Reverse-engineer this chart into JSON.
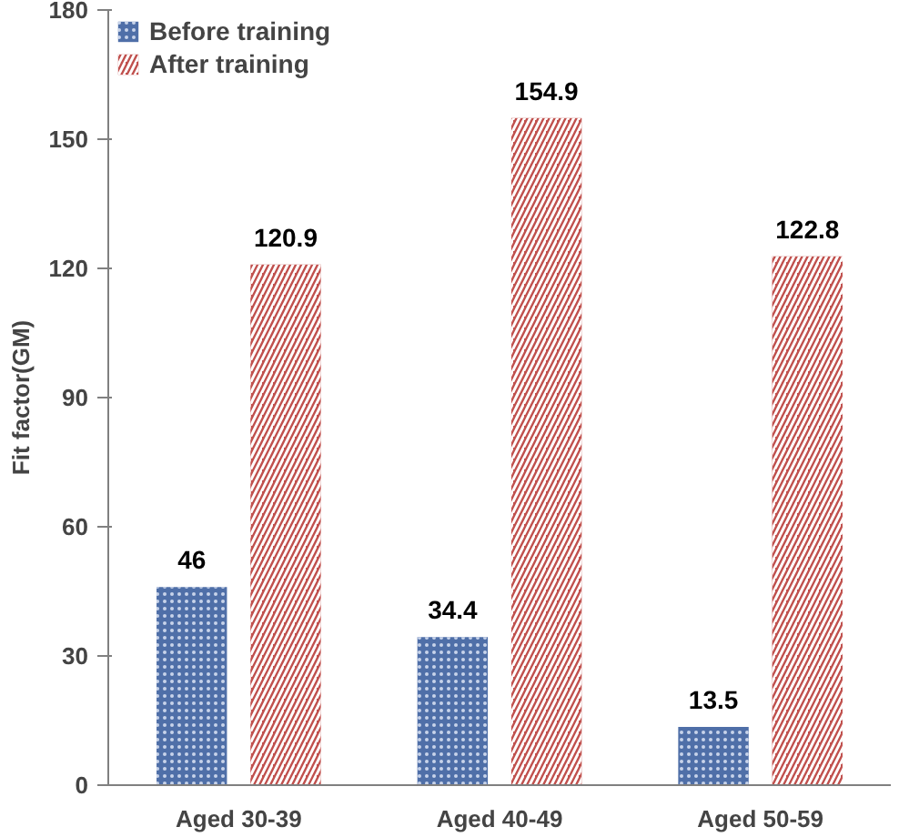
{
  "chart_data": {
    "type": "bar",
    "ylabel": "Fit factor(GM)",
    "categories": [
      "Aged 30-39",
      "Aged 40-49",
      "Aged 50-59"
    ],
    "series": [
      {
        "name": "Before training",
        "color": "#4f6fa8",
        "values": [
          46,
          34.4,
          13.5
        ]
      },
      {
        "name": "After training",
        "color": "#c0504d",
        "values": [
          120.9,
          154.9,
          122.8
        ]
      }
    ],
    "ylim": [
      0,
      180
    ],
    "yticks": [
      0,
      30,
      60,
      90,
      120,
      150,
      180
    ],
    "data_labels": true,
    "grid": false,
    "legend": "top left"
  }
}
